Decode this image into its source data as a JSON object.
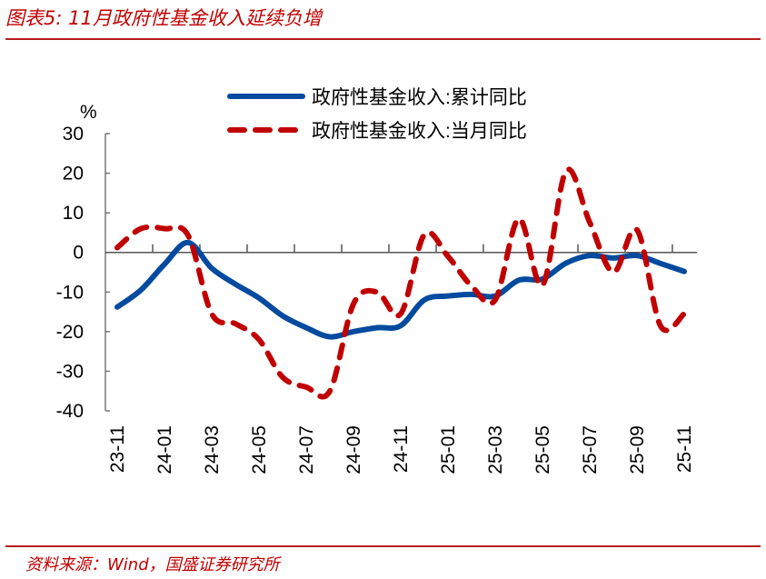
{
  "header": {
    "title": "图表5:  11月政府性基金收入延续负增"
  },
  "footer": {
    "source": "资料来源：Wind，国盛证券研究所"
  },
  "chart_data": {
    "type": "line",
    "title": "图表5:  11月政府性基金收入延续负增",
    "ylabel": "%",
    "xlabel": "",
    "ylim": [
      -40,
      30
    ],
    "yticks": [
      30,
      20,
      10,
      0,
      -10,
      -20,
      -30,
      -40
    ],
    "x": [
      "23-11",
      "23-12",
      "24-01",
      "24-02",
      "24-03",
      "24-04",
      "24-05",
      "24-06",
      "24-07",
      "24-08",
      "24-09",
      "24-10",
      "24-11",
      "24-12",
      "25-01",
      "25-02",
      "25-03",
      "25-04",
      "25-05",
      "25-06",
      "25-07",
      "25-08",
      "25-09",
      "25-10",
      "25-11"
    ],
    "xtick_labels": [
      "23-11",
      "24-01",
      "24-03",
      "24-05",
      "24-07",
      "24-09",
      "24-11",
      "25-01",
      "25-03",
      "25-05",
      "25-07",
      "25-09",
      "25-11"
    ],
    "legend_position": "top-right",
    "series": [
      {
        "name": "政府性基金收入:累计同比",
        "color": "#004a9f",
        "style": "solid",
        "values": [
          -13.8,
          -9.5,
          -3,
          2.5,
          -4,
          -8,
          -11.5,
          -16,
          -19,
          -21.3,
          -20,
          -19,
          -18.5,
          -12,
          -11,
          -10.6,
          -11,
          -7,
          -6.7,
          -2.7,
          -0.8,
          -1.4,
          -0.8,
          -2.8,
          -4.8
        ]
      },
      {
        "name": "政府性基金收入:当月同比",
        "color": "#c00000",
        "style": "dashed",
        "values": [
          1.2,
          6,
          6,
          4.3,
          -15.5,
          -18,
          -22,
          -31.5,
          -34,
          -35,
          -13,
          -10,
          -15.5,
          4.5,
          -1,
          -8.5,
          -12,
          8.5,
          -8.3,
          20.6,
          7.6,
          -5,
          5.7,
          -18.6,
          -15.5
        ]
      }
    ]
  }
}
